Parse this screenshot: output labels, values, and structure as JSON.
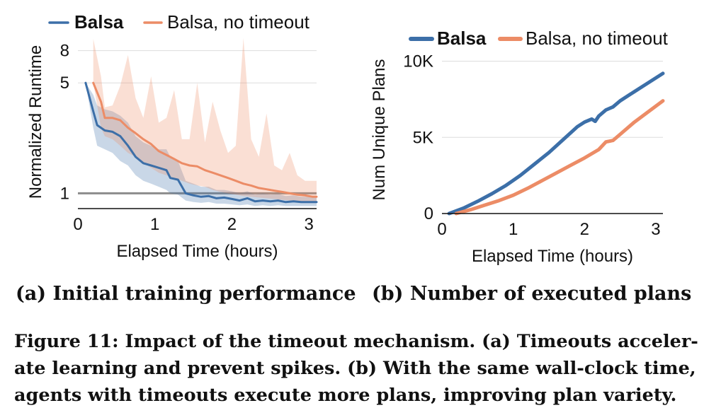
{
  "chart_data": [
    {
      "type": "line",
      "subcaption": "(a) Initial training performance",
      "xlabel": "Elapsed Time (hours)",
      "ylabel": "Normalized Runtime",
      "xlim": [
        0,
        3.1
      ],
      "ylim": [
        0.8,
        10
      ],
      "yscale": "log",
      "xticks": [
        "0",
        "1",
        "2",
        "3"
      ],
      "yticks": [
        "1",
        "5",
        "8"
      ],
      "ytick_values": [
        1,
        5,
        8
      ],
      "reference_line": 1,
      "legend": "top",
      "series": [
        {
          "name": "Balsa",
          "color": "#3c6fa8",
          "x": [
            0.1,
            0.2,
            0.25,
            0.35,
            0.45,
            0.55,
            0.65,
            0.75,
            0.85,
            0.95,
            1.05,
            1.15,
            1.2,
            1.3,
            1.4,
            1.5,
            1.6,
            1.7,
            1.8,
            1.9,
            2.0,
            2.1,
            2.2,
            2.3,
            2.4,
            2.5,
            2.6,
            2.7,
            2.8,
            2.9,
            3.0,
            3.1
          ],
          "y": [
            5.0,
            3.3,
            2.7,
            2.5,
            2.45,
            2.3,
            2.0,
            1.7,
            1.55,
            1.5,
            1.45,
            1.4,
            1.25,
            1.22,
            1.0,
            0.97,
            0.95,
            0.96,
            0.93,
            0.94,
            0.92,
            0.9,
            0.93,
            0.89,
            0.9,
            0.89,
            0.9,
            0.88,
            0.89,
            0.88,
            0.88,
            0.88
          ],
          "band_low": [
            5.0,
            2.6,
            2.0,
            1.9,
            1.8,
            1.6,
            1.5,
            1.3,
            1.2,
            1.15,
            1.1,
            1.05,
            1.0,
            0.98,
            0.9,
            0.88,
            0.87,
            0.88,
            0.86,
            0.86,
            0.85,
            0.84,
            0.85,
            0.83,
            0.84,
            0.83,
            0.84,
            0.83,
            0.83,
            0.83,
            0.83,
            0.83
          ],
          "band_high": [
            5.0,
            4.2,
            3.6,
            3.4,
            3.3,
            3.1,
            2.8,
            2.3,
            2.1,
            2.0,
            1.9,
            1.9,
            1.7,
            1.6,
            1.2,
            1.15,
            1.1,
            1.1,
            1.05,
            1.05,
            1.03,
            1.0,
            1.03,
            0.98,
            1.0,
            0.98,
            0.99,
            0.96,
            0.97,
            0.95,
            0.95,
            0.95
          ]
        },
        {
          "name": "Balsa, no timeout",
          "color": "#ec8c66",
          "x": [
            0.2,
            0.3,
            0.35,
            0.45,
            0.55,
            0.65,
            0.75,
            0.85,
            0.95,
            1.05,
            1.15,
            1.25,
            1.35,
            1.45,
            1.55,
            1.65,
            1.75,
            1.85,
            1.95,
            2.05,
            2.15,
            2.25,
            2.35,
            2.45,
            2.55,
            2.65,
            2.75,
            2.85,
            2.95,
            3.05,
            3.1
          ],
          "y": [
            5.0,
            3.8,
            3.0,
            3.0,
            2.9,
            2.6,
            2.4,
            2.2,
            2.05,
            1.85,
            1.75,
            1.65,
            1.55,
            1.5,
            1.48,
            1.4,
            1.35,
            1.3,
            1.25,
            1.2,
            1.15,
            1.12,
            1.08,
            1.06,
            1.04,
            1.02,
            1.0,
            0.98,
            0.97,
            0.95,
            0.95
          ],
          "band_low": [
            5.0,
            2.6,
            2.3,
            2.2,
            2.0,
            1.8,
            1.7,
            1.55,
            1.45,
            1.35,
            1.3,
            1.25,
            1.2,
            1.15,
            1.12,
            1.1,
            1.05,
            1.02,
            1.0,
            0.98,
            0.96,
            0.95,
            0.94,
            0.93,
            0.92,
            0.91,
            0.9,
            0.89,
            0.89,
            0.88,
            0.88
          ],
          "band_high": [
            9.5,
            5.5,
            3.5,
            3.6,
            4.8,
            7.5,
            4.0,
            3.0,
            5.5,
            2.8,
            3.0,
            4.5,
            2.2,
            2.2,
            5.0,
            2.1,
            3.8,
            2.5,
            1.8,
            2.0,
            9.6,
            2.2,
            1.7,
            3.2,
            1.5,
            1.4,
            1.8,
            1.3,
            1.2,
            1.2,
            1.2
          ]
        }
      ]
    },
    {
      "type": "line",
      "subcaption": "(b) Number of executed plans",
      "xlabel": "Elapsed Time (hours)",
      "ylabel": "Num Unique Plans",
      "xlim": [
        0,
        3.1
      ],
      "ylim": [
        0,
        11000
      ],
      "xticks": [
        "0",
        "1",
        "2",
        "3"
      ],
      "yticks": [
        "0",
        "5K",
        "10K"
      ],
      "ytick_values": [
        0,
        5000,
        10000
      ],
      "legend": "top",
      "series": [
        {
          "name": "Balsa",
          "color": "#3c6fa8",
          "x": [
            0.1,
            0.3,
            0.5,
            0.7,
            0.9,
            1.1,
            1.3,
            1.5,
            1.7,
            1.9,
            2.0,
            2.1,
            2.15,
            2.2,
            2.3,
            2.4,
            2.5,
            2.7,
            2.9,
            3.1
          ],
          "y": [
            0,
            350,
            800,
            1300,
            1850,
            2500,
            3250,
            4000,
            4850,
            5700,
            6000,
            6200,
            6050,
            6400,
            6800,
            7000,
            7400,
            8000,
            8600,
            9200
          ]
        },
        {
          "name": "Balsa, no timeout",
          "color": "#ec8c66",
          "x": [
            0.2,
            0.4,
            0.6,
            0.8,
            1.0,
            1.2,
            1.4,
            1.6,
            1.8,
            2.0,
            2.2,
            2.3,
            2.35,
            2.4,
            2.5,
            2.7,
            2.9,
            3.1
          ],
          "y": [
            0,
            250,
            550,
            850,
            1200,
            1650,
            2150,
            2650,
            3150,
            3650,
            4200,
            4700,
            4750,
            4800,
            5200,
            6000,
            6700,
            7400
          ]
        }
      ]
    }
  ],
  "caption": {
    "lines": [
      "Figure 11: Impact of the timeout mechanism. (a) Timeouts acceler-",
      "ate learning and prevent spikes. (b) With the same wall-clock time,",
      "agents with timeouts execute more plans, improving plan variety."
    ]
  }
}
